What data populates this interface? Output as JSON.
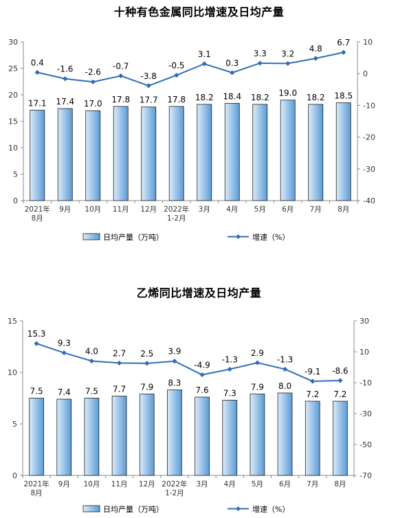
{
  "chart_data": [
    {
      "type": "bar+line",
      "title": "十种有色金属同比增速及日均产量",
      "categories": [
        "2021年\n8月",
        "9月",
        "10月",
        "11月",
        "12月",
        "2022年\n1-2月",
        "3月",
        "4月",
        "5月",
        "6月",
        "7月",
        "8月"
      ],
      "series": [
        {
          "name": "日均产量（万吨）",
          "type": "bar",
          "axis": "left",
          "values": [
            17.1,
            17.4,
            17.0,
            17.8,
            17.7,
            17.8,
            18.2,
            18.4,
            18.2,
            19.0,
            18.2,
            18.5
          ],
          "labels": [
            "17.1",
            "17.4",
            "17.0",
            "17.8",
            "17.7",
            "17.8",
            "18.2",
            "18.4",
            "18.2",
            "19.0",
            "18.2",
            "18.5"
          ]
        },
        {
          "name": "增速（%）",
          "type": "line",
          "axis": "right",
          "values": [
            0.4,
            -1.6,
            -2.6,
            -0.7,
            -3.8,
            -0.5,
            3.1,
            0.3,
            3.3,
            3.2,
            4.8,
            6.7
          ],
          "labels": [
            "0.4",
            "-1.6",
            "-2.6",
            "-0.7",
            "-3.8",
            "-0.5",
            "3.1",
            "0.3",
            "3.3",
            "3.2",
            "4.8",
            "6.7"
          ]
        }
      ],
      "ylim_left": [
        0,
        30
      ],
      "yticks_left": [
        0,
        5,
        10,
        15,
        20,
        25,
        30
      ],
      "ylim_right": [
        -40,
        10
      ],
      "yticks_right": [
        -40,
        -30,
        -20,
        -10,
        0,
        10
      ],
      "grid": false,
      "legend_position": "bottom",
      "colors": {
        "bar_fill_light": "#dcebfa",
        "bar_fill_dark": "#5b9bd5",
        "bar_stroke": "#1f1f1f",
        "line": "#2f6db5"
      }
    },
    {
      "type": "bar+line",
      "title": "乙烯同比增速及日均产量",
      "categories": [
        "2021年\n8月",
        "9月",
        "10月",
        "11月",
        "12月",
        "2022年\n1-2月",
        "3月",
        "4月",
        "5月",
        "6月",
        "7月",
        "8月"
      ],
      "series": [
        {
          "name": "日均产量（万吨）",
          "type": "bar",
          "axis": "left",
          "values": [
            7.5,
            7.4,
            7.5,
            7.7,
            7.9,
            8.3,
            7.6,
            7.3,
            7.9,
            8.0,
            7.2,
            7.2
          ],
          "labels": [
            "7.5",
            "7.4",
            "7.5",
            "7.7",
            "7.9",
            "8.3",
            "7.6",
            "7.3",
            "7.9",
            "8.0",
            "7.2",
            "7.2"
          ]
        },
        {
          "name": "增速（%）",
          "type": "line",
          "axis": "right",
          "values": [
            15.3,
            9.3,
            4.0,
            2.7,
            2.5,
            3.9,
            -4.9,
            -1.3,
            2.9,
            -1.3,
            -9.1,
            -8.6
          ],
          "labels": [
            "15.3",
            "9.3",
            "4.0",
            "2.7",
            "2.5",
            "3.9",
            "-4.9",
            "-1.3",
            "2.9",
            "-1.3",
            "-9.1",
            "-8.6"
          ]
        }
      ],
      "ylim_left": [
        0,
        15
      ],
      "yticks_left": [
        0,
        5,
        10,
        15
      ],
      "ylim_right": [
        -70,
        30
      ],
      "yticks_right": [
        -70,
        -50,
        -30,
        -10,
        10,
        30
      ],
      "grid": false,
      "legend_position": "bottom",
      "colors": {
        "bar_fill_light": "#dcebfa",
        "bar_fill_dark": "#5b9bd5",
        "bar_stroke": "#1f1f1f",
        "line": "#2f6db5"
      }
    }
  ]
}
